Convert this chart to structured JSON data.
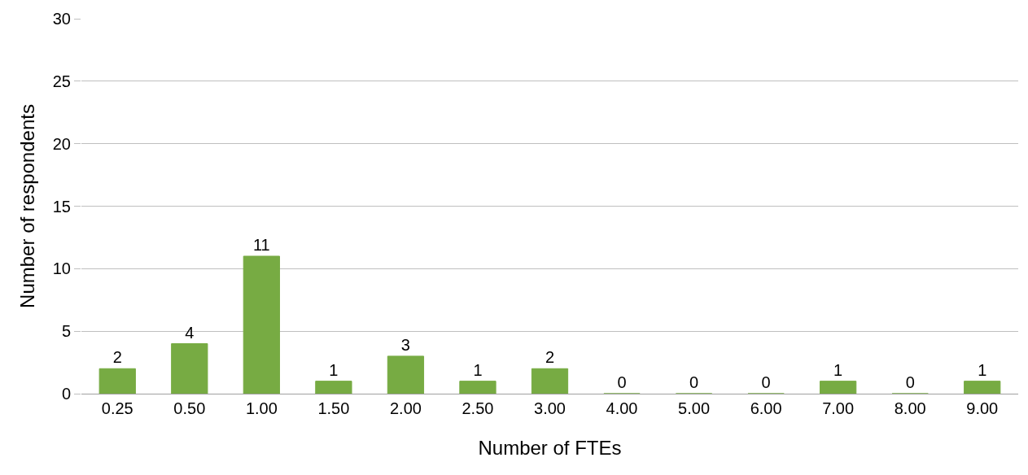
{
  "chart_data": {
    "type": "bar",
    "xlabel": "Number of FTEs",
    "ylabel": "Number of respondents",
    "categories": [
      "0.25",
      "0.50",
      "1.00",
      "1.50",
      "2.00",
      "2.50",
      "3.00",
      "4.00",
      "5.00",
      "6.00",
      "7.00",
      "8.00",
      "9.00"
    ],
    "values": [
      2,
      4,
      11,
      1,
      3,
      1,
      2,
      0,
      0,
      0,
      1,
      0,
      1
    ],
    "color": "#77ab43",
    "ylim": [
      0,
      30
    ],
    "yticks": [
      0,
      5,
      10,
      15,
      20,
      25,
      30
    ],
    "grid": "y",
    "data_labels": true,
    "legend": false
  }
}
